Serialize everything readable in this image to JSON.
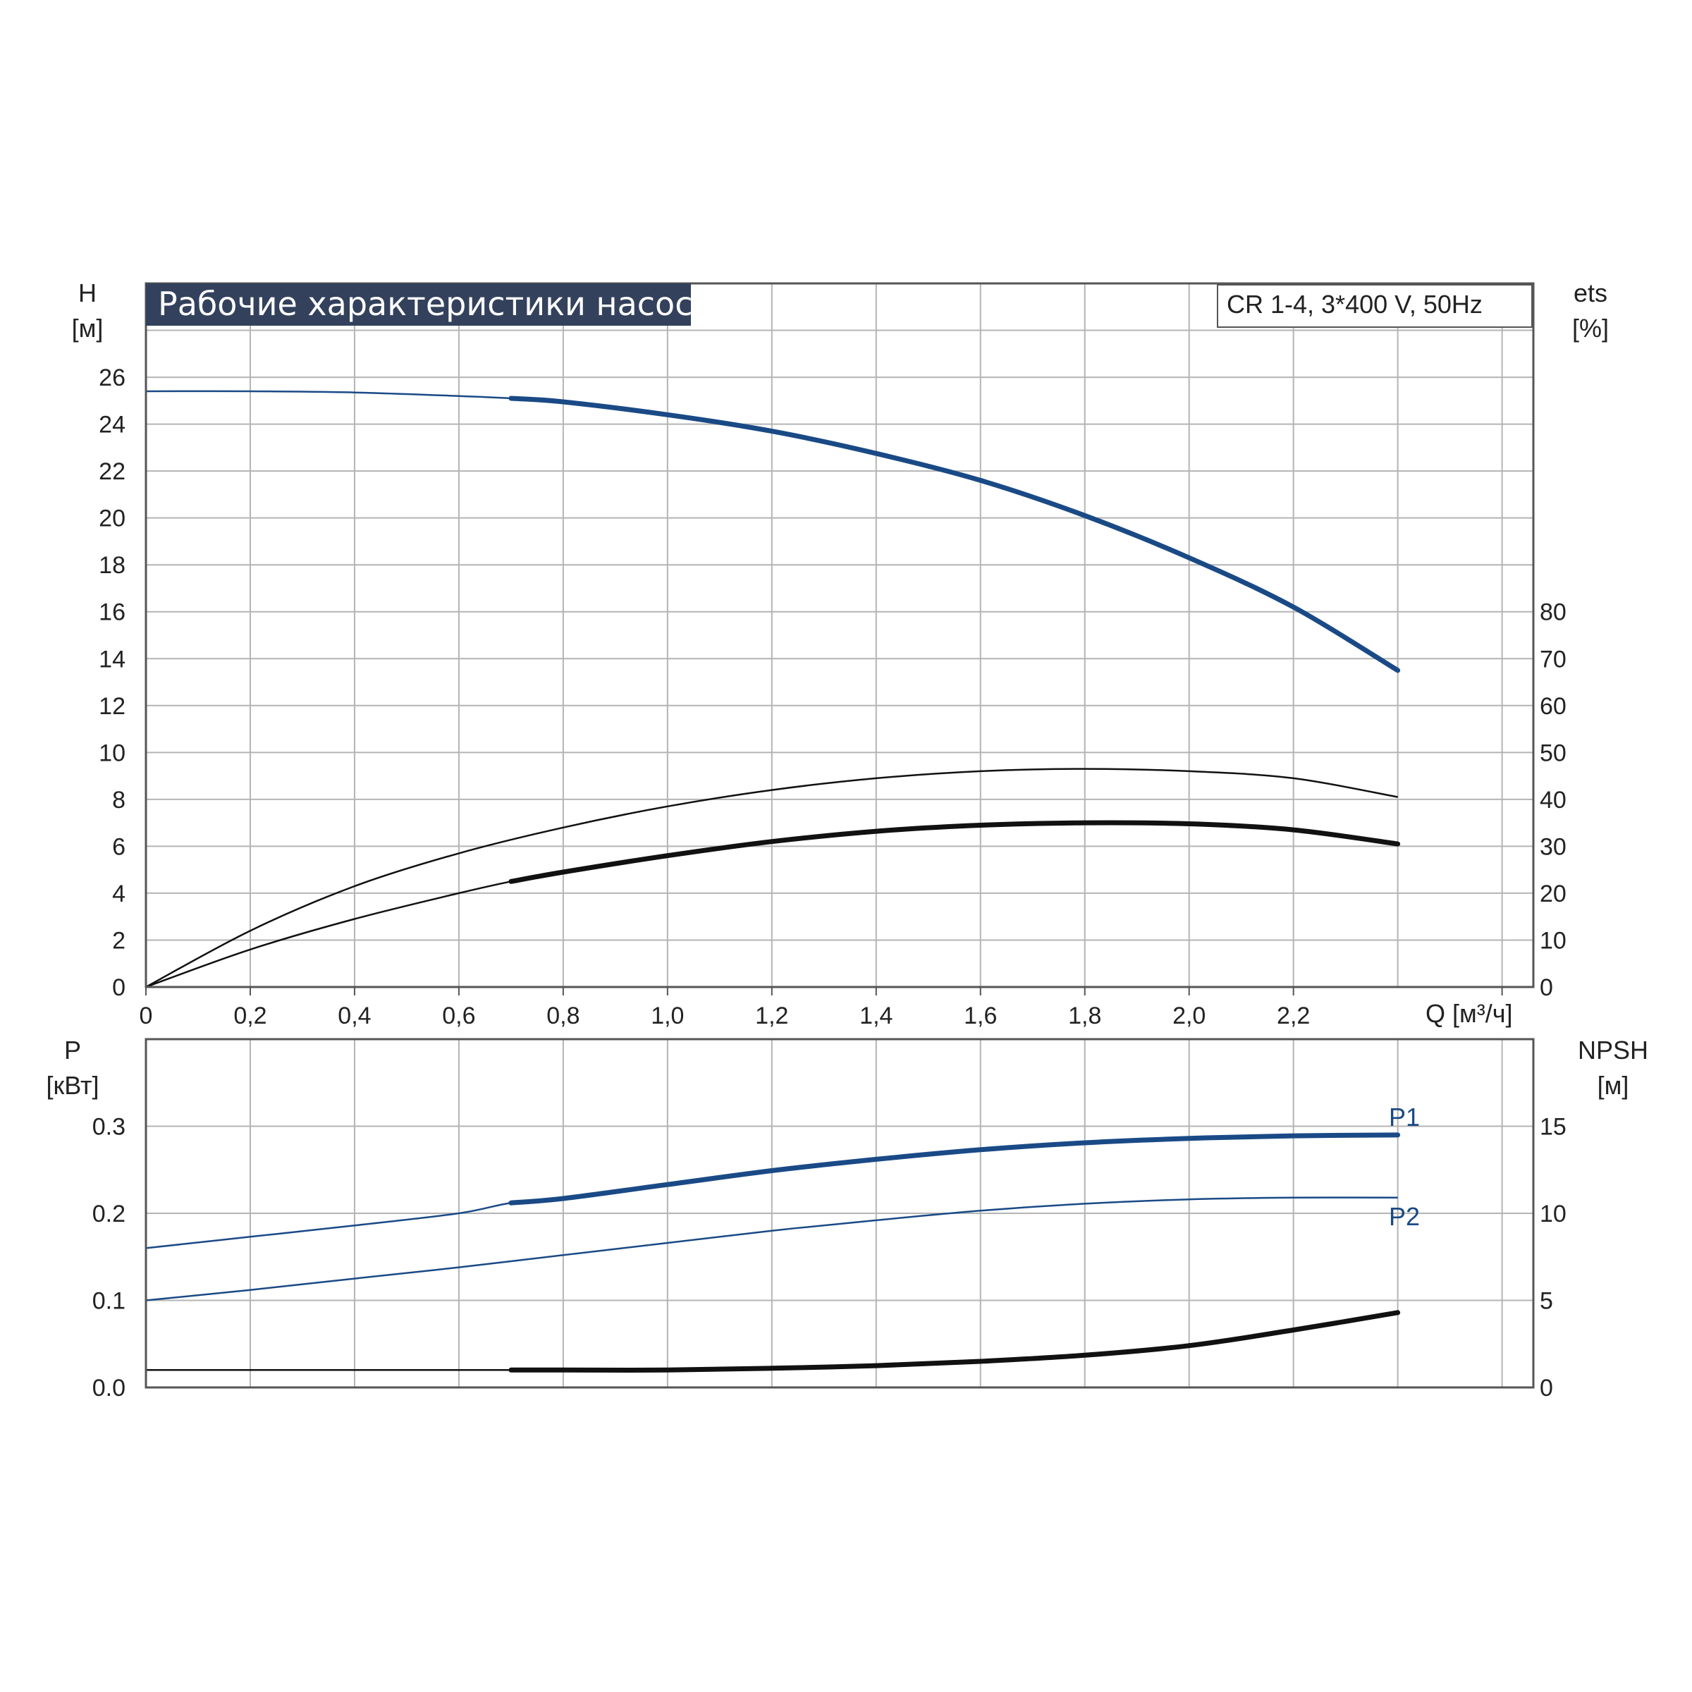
{
  "chart_data": [
    {
      "type": "line",
      "title": "Рабочие характеристики насоса",
      "model_label": "CR 1-4, 3*400 V, 50Hz",
      "x_label": "Q [м³/ч]",
      "x_ticks": [
        "0",
        "0,2",
        "0,4",
        "0,6",
        "0,8",
        "1,0",
        "1,2",
        "1,4",
        "1,6",
        "1,8",
        "2,0",
        "2,2"
      ],
      "xlim": [
        0,
        2.66
      ],
      "y_left": {
        "label_line1": "H",
        "label_line2": "[м]",
        "ticks": [
          "0",
          "2",
          "4",
          "6",
          "8",
          "10",
          "12",
          "14",
          "16",
          "18",
          "20",
          "22",
          "24",
          "26"
        ],
        "lim": [
          0,
          30
        ]
      },
      "y_right": {
        "label_line1": "ets",
        "label_line2": "[%]",
        "ticks": [
          "0",
          "10",
          "20",
          "30",
          "40",
          "50",
          "60",
          "70",
          "80"
        ],
        "lim": [
          0,
          150
        ]
      },
      "grid": true,
      "series": [
        {
          "key": "head",
          "axis": "left",
          "color": "#1a4a86",
          "highlight_from": 0.7,
          "points": [
            [
              0,
              25.4
            ],
            [
              0.2,
              25.4
            ],
            [
              0.4,
              25.35
            ],
            [
              0.6,
              25.2
            ],
            [
              0.7,
              25.1
            ],
            [
              0.8,
              24.95
            ],
            [
              1.0,
              24.4
            ],
            [
              1.2,
              23.7
            ],
            [
              1.4,
              22.75
            ],
            [
              1.6,
              21.6
            ],
            [
              1.8,
              20.1
            ],
            [
              2.0,
              18.3
            ],
            [
              2.2,
              16.2
            ],
            [
              2.4,
              13.5
            ]
          ]
        },
        {
          "key": "efficiency-total",
          "axis": "right",
          "color": "#111111",
          "highlight_from": 99,
          "points": [
            [
              0,
              0
            ],
            [
              0.2,
              12
            ],
            [
              0.4,
              21.5
            ],
            [
              0.6,
              28.5
            ],
            [
              0.8,
              34
            ],
            [
              1.0,
              38.5
            ],
            [
              1.2,
              42
            ],
            [
              1.4,
              44.5
            ],
            [
              1.6,
              46
            ],
            [
              1.8,
              46.5
            ],
            [
              2.0,
              46
            ],
            [
              2.2,
              44.5
            ],
            [
              2.4,
              40.5
            ]
          ]
        },
        {
          "key": "efficiency-pump",
          "axis": "right",
          "color": "#111111",
          "highlight_from": 0.7,
          "points": [
            [
              0,
              0
            ],
            [
              0.2,
              8
            ],
            [
              0.4,
              14.5
            ],
            [
              0.6,
              20
            ],
            [
              0.7,
              22.5
            ],
            [
              0.8,
              24.5
            ],
            [
              1.0,
              28
            ],
            [
              1.2,
              31
            ],
            [
              1.4,
              33.2
            ],
            [
              1.6,
              34.5
            ],
            [
              1.8,
              35
            ],
            [
              2.0,
              34.8
            ],
            [
              2.2,
              33.5
            ],
            [
              2.4,
              30.5
            ]
          ]
        }
      ]
    },
    {
      "type": "line",
      "y_left": {
        "label_line1": "P",
        "label_line2": "[кВт]",
        "ticks": [
          "0.0",
          "0.1",
          "0.2",
          "0.3"
        ],
        "lim": [
          0,
          0.4
        ]
      },
      "y_right": {
        "label_line1": "NPSH",
        "label_line2": "[м]",
        "ticks": [
          "0",
          "5",
          "10",
          "15"
        ],
        "lim": [
          0,
          20
        ]
      },
      "xlim": [
        0,
        2.66
      ],
      "grid": true,
      "series": [
        {
          "key": "P1",
          "name": "P1",
          "axis": "left",
          "color": "#1a4a86",
          "highlight_from": 0.7,
          "points": [
            [
              0,
              0.16
            ],
            [
              0.2,
              0.173
            ],
            [
              0.4,
              0.186
            ],
            [
              0.6,
              0.2
            ],
            [
              0.7,
              0.212
            ],
            [
              0.8,
              0.217
            ],
            [
              1.0,
              0.233
            ],
            [
              1.2,
              0.249
            ],
            [
              1.4,
              0.262
            ],
            [
              1.6,
              0.273
            ],
            [
              1.8,
              0.281
            ],
            [
              2.0,
              0.286
            ],
            [
              2.2,
              0.289
            ],
            [
              2.4,
              0.29
            ]
          ]
        },
        {
          "key": "P2",
          "name": "P2",
          "axis": "left",
          "color": "#1a4a86",
          "highlight_from": 99,
          "points": [
            [
              0,
              0.1
            ],
            [
              0.2,
              0.112
            ],
            [
              0.4,
              0.125
            ],
            [
              0.6,
              0.138
            ],
            [
              0.8,
              0.152
            ],
            [
              1.0,
              0.166
            ],
            [
              1.2,
              0.18
            ],
            [
              1.4,
              0.192
            ],
            [
              1.6,
              0.203
            ],
            [
              1.8,
              0.211
            ],
            [
              2.0,
              0.216
            ],
            [
              2.2,
              0.218
            ],
            [
              2.4,
              0.218
            ]
          ]
        },
        {
          "key": "NPSH",
          "axis": "right",
          "color": "#111111",
          "highlight_from": 0.7,
          "points": [
            [
              0,
              1
            ],
            [
              0.7,
              1
            ],
            [
              0.8,
              1
            ],
            [
              1.0,
              1
            ],
            [
              1.2,
              1.1
            ],
            [
              1.4,
              1.25
            ],
            [
              1.6,
              1.5
            ],
            [
              1.8,
              1.85
            ],
            [
              2.0,
              2.4
            ],
            [
              2.2,
              3.3
            ],
            [
              2.4,
              4.3
            ]
          ]
        }
      ]
    }
  ]
}
